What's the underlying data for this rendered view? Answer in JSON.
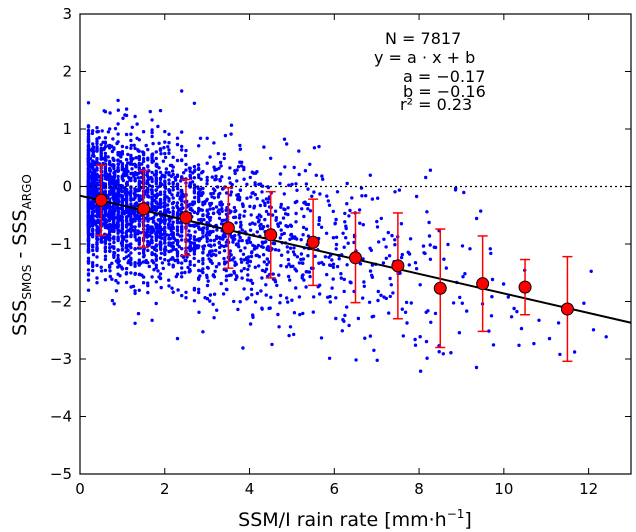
{
  "chart_data": {
    "type": "scatter",
    "xlabel": "SSM/I rain rate [mm·h⁻¹]",
    "xlabel_parts": {
      "main": "SSM/I rain rate ",
      "unit": "[mm·h",
      "exp": "−1",
      "close": "]"
    },
    "ylabel_parts": {
      "a": "SSS",
      "a_sub": "SMOS",
      "mid": " - SSS",
      "b_sub": "ARGO"
    },
    "xlim": [
      0,
      13
    ],
    "ylim": [
      -5,
      3
    ],
    "xticks": [
      0,
      2,
      4,
      6,
      8,
      10,
      12
    ],
    "yticks": [
      -5,
      -4,
      -3,
      -2,
      -1,
      0,
      1,
      2,
      3
    ],
    "annotations": {
      "n": "N = 7817",
      "model": "y = a · x + b",
      "a": "a = −0.17",
      "b": "b = −0.16",
      "r2": "r² = 0.23"
    },
    "fit_line": {
      "slope": -0.17,
      "intercept": -0.16
    },
    "zero_line": 0,
    "binned_means": [
      {
        "x": 0.5,
        "y": -0.24,
        "err": 0.61
      },
      {
        "x": 1.5,
        "y": -0.39,
        "err": 0.67
      },
      {
        "x": 2.5,
        "y": -0.54,
        "err": 0.66
      },
      {
        "x": 3.5,
        "y": -0.72,
        "err": 0.7
      },
      {
        "x": 4.5,
        "y": -0.84,
        "err": 0.75
      },
      {
        "x": 5.5,
        "y": -0.97,
        "err": 0.75
      },
      {
        "x": 6.5,
        "y": -1.24,
        "err": 0.78
      },
      {
        "x": 7.5,
        "y": -1.38,
        "err": 0.92
      },
      {
        "x": 8.5,
        "y": -1.77,
        "err": 1.03
      },
      {
        "x": 9.5,
        "y": -1.69,
        "err": 0.83
      },
      {
        "x": 10.5,
        "y": -1.75,
        "err": 0.48
      },
      {
        "x": 11.5,
        "y": -2.13,
        "err": 0.91
      }
    ],
    "scatter_points_shown": 7817,
    "colors": {
      "scatter": "#0000ff",
      "means": "#ff0000",
      "errorbars": "#ff0000",
      "fit": "#000000"
    }
  }
}
